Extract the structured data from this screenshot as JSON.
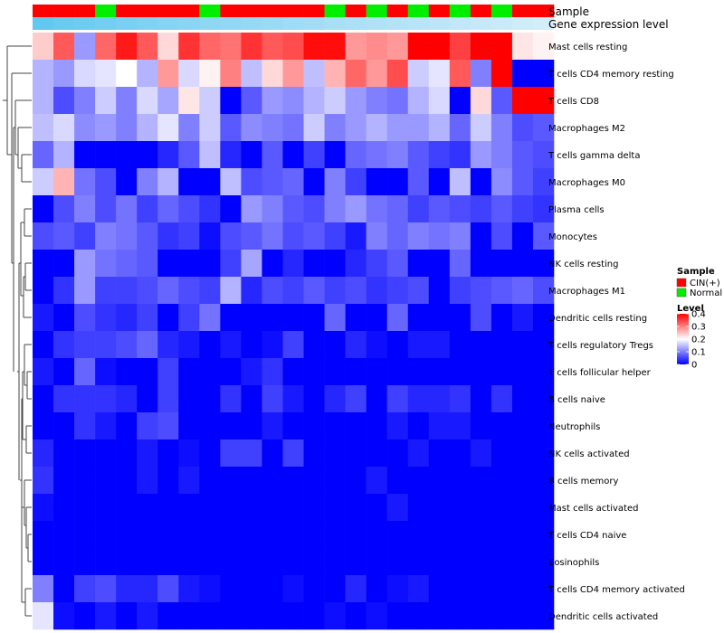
{
  "chart_data": {
    "type": "heatmap",
    "title": "",
    "annotation_labels": [
      "Sample",
      "Gene expression level"
    ],
    "column_groups": [
      "CIN",
      "CIN",
      "CIN",
      "Normal",
      "CIN",
      "CIN",
      "CIN",
      "CIN",
      "Normal",
      "CIN",
      "CIN",
      "CIN",
      "CIN",
      "CIN",
      "Normal",
      "CIN",
      "Normal",
      "CIN",
      "Normal",
      "CIN",
      "Normal",
      "CIN",
      "Normal",
      "CIN",
      "CIN"
    ],
    "expression_level": [
      0.95,
      0.9,
      0.86,
      0.82,
      0.78,
      0.74,
      0.7,
      0.67,
      0.64,
      0.61,
      0.58,
      0.55,
      0.52,
      0.49,
      0.46,
      0.43,
      0.4,
      0.37,
      0.34,
      0.31,
      0.28,
      0.25,
      0.22,
      0.18,
      0.14
    ],
    "rows": [
      "Mast cells resting",
      "T cells CD4 memory resting",
      "T cells CD8",
      "Macrophages M2",
      "T cells gamma delta",
      "Macrophages M0",
      "Plasma cells",
      "Monocytes",
      "NK cells resting",
      "Macrophages M1",
      "Dendritic cells resting",
      "T cells regulatory  Tregs",
      "T cells follicular helper",
      "B cells naive",
      "Neutrophils",
      "NK cells activated",
      "B cells memory",
      "Mast cells activated",
      "T cells CD4 naive",
      "Eosinophils",
      "T cells CD4 memory activated",
      "Dendritic cells activated"
    ],
    "values": [
      [
        0.24,
        0.33,
        0.12,
        0.32,
        0.38,
        0.33,
        0.23,
        0.36,
        0.32,
        0.31,
        0.36,
        0.33,
        0.34,
        0.39,
        0.39,
        0.28,
        0.29,
        0.28,
        0.4,
        0.4,
        0.35,
        0.4,
        0.4,
        0.22,
        0.21
      ],
      [
        0.14,
        0.12,
        0.17,
        0.18,
        0.2,
        0.14,
        0.28,
        0.17,
        0.21,
        0.3,
        0.15,
        0.23,
        0.28,
        0.15,
        0.26,
        0.32,
        0.28,
        0.34,
        0.16,
        0.18,
        0.33,
        0.1,
        0.4,
        0.0,
        0.0
      ],
      [
        0.14,
        0.06,
        0.1,
        0.16,
        0.1,
        0.17,
        0.13,
        0.22,
        0.16,
        0.0,
        0.07,
        0.12,
        0.11,
        0.14,
        0.16,
        0.12,
        0.1,
        0.09,
        0.14,
        0.17,
        0.0,
        0.23,
        0.07,
        0.4,
        0.4
      ],
      [
        0.15,
        0.17,
        0.11,
        0.12,
        0.1,
        0.14,
        0.18,
        0.1,
        0.16,
        0.07,
        0.11,
        0.1,
        0.09,
        0.16,
        0.1,
        0.12,
        0.14,
        0.12,
        0.12,
        0.14,
        0.08,
        0.16,
        0.1,
        0.06,
        0.07
      ],
      [
        0.08,
        0.14,
        0.0,
        0.0,
        0.0,
        0.0,
        0.03,
        0.07,
        0.15,
        0.03,
        0.0,
        0.07,
        0.0,
        0.05,
        0.0,
        0.08,
        0.09,
        0.1,
        0.07,
        0.05,
        0.04,
        0.12,
        0.1,
        0.07,
        0.06
      ],
      [
        0.16,
        0.26,
        0.09,
        0.06,
        0.0,
        0.1,
        0.14,
        0.0,
        0.0,
        0.15,
        0.06,
        0.07,
        0.08,
        0.0,
        0.1,
        0.05,
        0.0,
        0.0,
        0.07,
        0.0,
        0.15,
        0.0,
        0.11,
        0.07,
        0.05
      ],
      [
        0.0,
        0.06,
        0.1,
        0.06,
        0.09,
        0.05,
        0.08,
        0.06,
        0.04,
        0.0,
        0.12,
        0.1,
        0.07,
        0.06,
        0.1,
        0.12,
        0.09,
        0.08,
        0.05,
        0.07,
        0.06,
        0.05,
        0.07,
        0.05,
        0.04
      ],
      [
        0.06,
        0.07,
        0.05,
        0.1,
        0.09,
        0.07,
        0.04,
        0.05,
        0.01,
        0.06,
        0.07,
        0.09,
        0.06,
        0.07,
        0.05,
        0.02,
        0.1,
        0.08,
        0.1,
        0.09,
        0.1,
        0.0,
        0.06,
        0.0,
        0.07
      ],
      [
        0.0,
        0.0,
        0.12,
        0.09,
        0.08,
        0.07,
        0.0,
        0.0,
        0.0,
        0.05,
        0.13,
        0.0,
        0.03,
        0.0,
        0.0,
        0.03,
        0.05,
        0.07,
        0.0,
        0.0,
        0.08,
        0.0,
        0.0,
        0.0,
        0.0
      ],
      [
        0.0,
        0.04,
        0.12,
        0.05,
        0.05,
        0.06,
        0.08,
        0.06,
        0.05,
        0.14,
        0.03,
        0.06,
        0.05,
        0.07,
        0.05,
        0.06,
        0.04,
        0.05,
        0.06,
        0.0,
        0.05,
        0.06,
        0.07,
        0.08,
        0.06
      ],
      [
        0.02,
        0.0,
        0.06,
        0.04,
        0.03,
        0.05,
        0.0,
        0.05,
        0.09,
        0.0,
        0.0,
        0.0,
        0.0,
        0.0,
        0.08,
        0.0,
        0.0,
        0.08,
        0.0,
        0.0,
        0.0,
        0.06,
        0.0,
        0.02,
        0.0
      ],
      [
        0.0,
        0.04,
        0.05,
        0.05,
        0.06,
        0.08,
        0.03,
        0.02,
        0.0,
        0.02,
        0.0,
        0.01,
        0.05,
        0.0,
        0.0,
        0.03,
        0.01,
        0.0,
        0.02,
        0.02,
        0.0,
        0.0,
        0.0,
        0.0,
        0.0
      ],
      [
        0.02,
        0.0,
        0.08,
        0.01,
        0.0,
        0.0,
        0.05,
        0.0,
        0.0,
        0.0,
        0.02,
        0.04,
        0.0,
        0.0,
        0.0,
        0.0,
        0.0,
        0.0,
        0.0,
        0.0,
        0.0,
        0.0,
        0.0,
        0.0,
        0.0
      ],
      [
        0.0,
        0.04,
        0.04,
        0.04,
        0.03,
        0.0,
        0.05,
        0.0,
        0.0,
        0.04,
        0.0,
        0.05,
        0.02,
        0.0,
        0.03,
        0.05,
        0.0,
        0.05,
        0.03,
        0.03,
        0.04,
        0.0,
        0.04,
        0.0,
        0.0
      ],
      [
        0.0,
        0.0,
        0.04,
        0.02,
        0.0,
        0.05,
        0.06,
        0.0,
        0.0,
        0.0,
        0.0,
        0.02,
        0.0,
        0.0,
        0.0,
        0.0,
        0.0,
        0.02,
        0.0,
        0.02,
        0.02,
        0.0,
        0.0,
        0.0,
        0.0
      ],
      [
        0.03,
        0.0,
        0.0,
        0.0,
        0.0,
        0.02,
        0.0,
        0.01,
        0.0,
        0.05,
        0.05,
        0.0,
        0.05,
        0.0,
        0.0,
        0.0,
        0.0,
        0.0,
        0.02,
        0.0,
        0.0,
        0.02,
        0.0,
        0.0,
        0.0
      ],
      [
        0.04,
        0.0,
        0.0,
        0.0,
        0.0,
        0.02,
        0.0,
        0.02,
        0.0,
        0.0,
        0.0,
        0.0,
        0.0,
        0.0,
        0.0,
        0.0,
        0.02,
        0.0,
        0.0,
        0.0,
        0.0,
        0.0,
        0.0,
        0.0,
        0.0
      ],
      [
        0.01,
        0.0,
        0.0,
        0.0,
        0.0,
        0.0,
        0.0,
        0.0,
        0.0,
        0.0,
        0.0,
        0.0,
        0.0,
        0.0,
        0.0,
        0.0,
        0.0,
        0.02,
        0.0,
        0.0,
        0.0,
        0.0,
        0.0,
        0.0,
        0.0
      ],
      [
        0.0,
        0.0,
        0.0,
        0.0,
        0.0,
        0.0,
        0.0,
        0.0,
        0.0,
        0.0,
        0.0,
        0.0,
        0.0,
        0.0,
        0.0,
        0.0,
        0.0,
        0.0,
        0.0,
        0.0,
        0.0,
        0.0,
        0.0,
        0.0,
        0.0
      ],
      [
        0.0,
        0.0,
        0.0,
        0.0,
        0.0,
        0.0,
        0.0,
        0.0,
        0.0,
        0.0,
        0.0,
        0.0,
        0.0,
        0.0,
        0.0,
        0.0,
        0.0,
        0.0,
        0.0,
        0.0,
        0.0,
        0.0,
        0.0,
        0.0,
        0.0
      ],
      [
        0.1,
        0.0,
        0.05,
        0.06,
        0.03,
        0.03,
        0.06,
        0.02,
        0.01,
        0.0,
        0.0,
        0.0,
        0.01,
        0.0,
        0.0,
        0.03,
        0.0,
        0.01,
        0.02,
        0.0,
        0.0,
        0.0,
        0.0,
        0.0,
        0.0
      ],
      [
        0.18,
        0.01,
        0.0,
        0.02,
        0.0,
        0.02,
        0.0,
        0.0,
        0.0,
        0.0,
        0.0,
        0.0,
        0.0,
        0.0,
        0.01,
        0.0,
        0.01,
        0.0,
        0.0,
        0.0,
        0.0,
        0.0,
        0.0,
        0.0,
        0.0
      ]
    ],
    "color_range": [
      0,
      0.4
    ],
    "colors": {
      "low": "#0000ff",
      "mid": "#ffffff",
      "high": "#ff0000",
      "cin": "#ff0000",
      "normal": "#00ee00",
      "expr_low": "#e8f4fb",
      "expr_high": "#5bc6ef"
    },
    "legend": {
      "sample_title": "Sample",
      "sample_entries": [
        {
          "key": "CIN",
          "label": "CIN(+)"
        },
        {
          "key": "Normal",
          "label": "Normal"
        }
      ],
      "level_title": "Level",
      "level_ticks": [
        "0.4",
        "0.3",
        "0.2",
        "0.1",
        "0"
      ],
      "placement": "right"
    }
  }
}
